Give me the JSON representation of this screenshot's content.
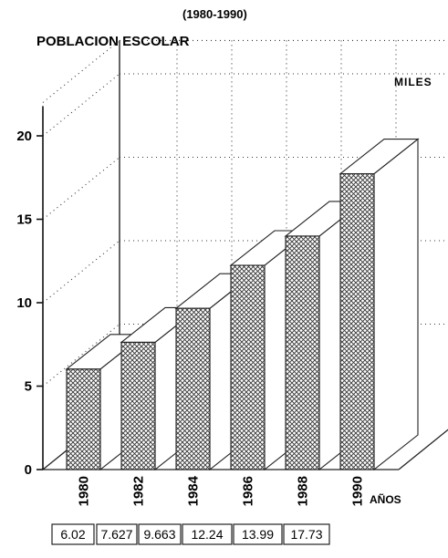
{
  "chart_data": {
    "type": "bar",
    "period": "(1980-1990)",
    "title": "POBLACION ESCOLAR",
    "unit_label": "MILES",
    "xlabel": "AÑOS",
    "categories": [
      "1980",
      "1982",
      "1984",
      "1986",
      "1988",
      "1990"
    ],
    "values": [
      6.02,
      7.627,
      9.663,
      12.24,
      13.99,
      17.73
    ],
    "value_labels": [
      "6.02",
      "7.627",
      "9.663",
      "12.24",
      "13.99",
      "17.73"
    ],
    "y_ticks": [
      "0",
      "5",
      "10",
      "15",
      "20"
    ],
    "ylim": [
      0,
      22
    ],
    "grid": true,
    "style": "3d"
  }
}
